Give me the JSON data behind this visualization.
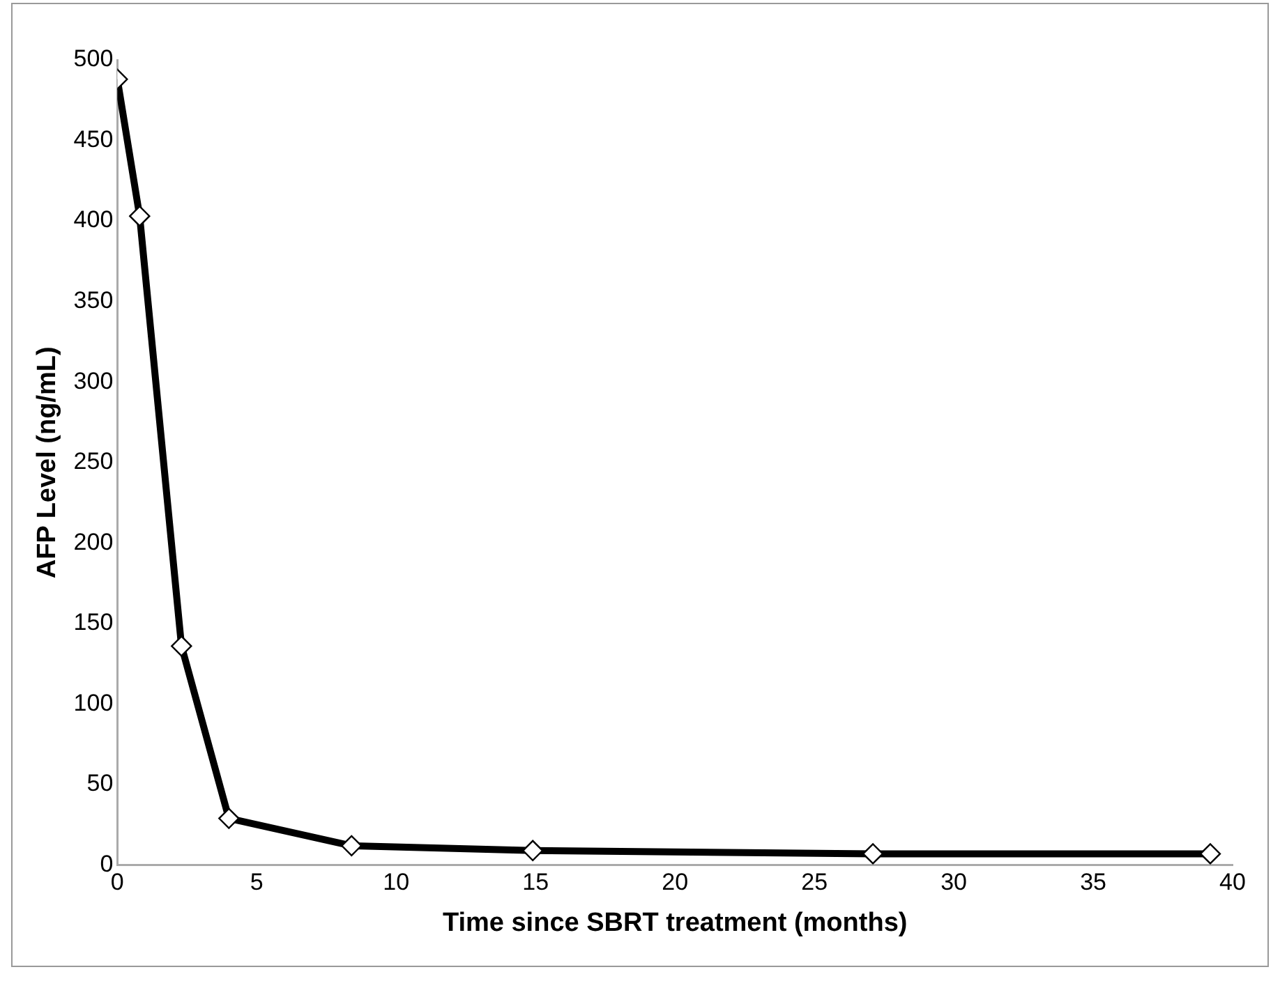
{
  "chart_data": {
    "type": "line",
    "xlabel": "Time since SBRT treatment (months)",
    "ylabel": "AFP Level (ng/mL)",
    "x": [
      0,
      0.8,
      2.3,
      4,
      8.4,
      14.9,
      27.1,
      39.2
    ],
    "series": [
      {
        "color": "#000000",
        "values": [
          488,
          403,
          136,
          29,
          12,
          9,
          7,
          7
        ]
      }
    ],
    "xlim": [
      0,
      40
    ],
    "xticks": [
      0,
      5,
      10,
      15,
      20,
      25,
      30,
      35,
      40
    ],
    "ylim": [
      0,
      500
    ],
    "yticks": [
      0,
      50,
      100,
      150,
      200,
      250,
      300,
      350,
      400,
      450,
      500
    ],
    "grid": false,
    "legend": false,
    "marker": "diamond",
    "line_style": "solid"
  }
}
